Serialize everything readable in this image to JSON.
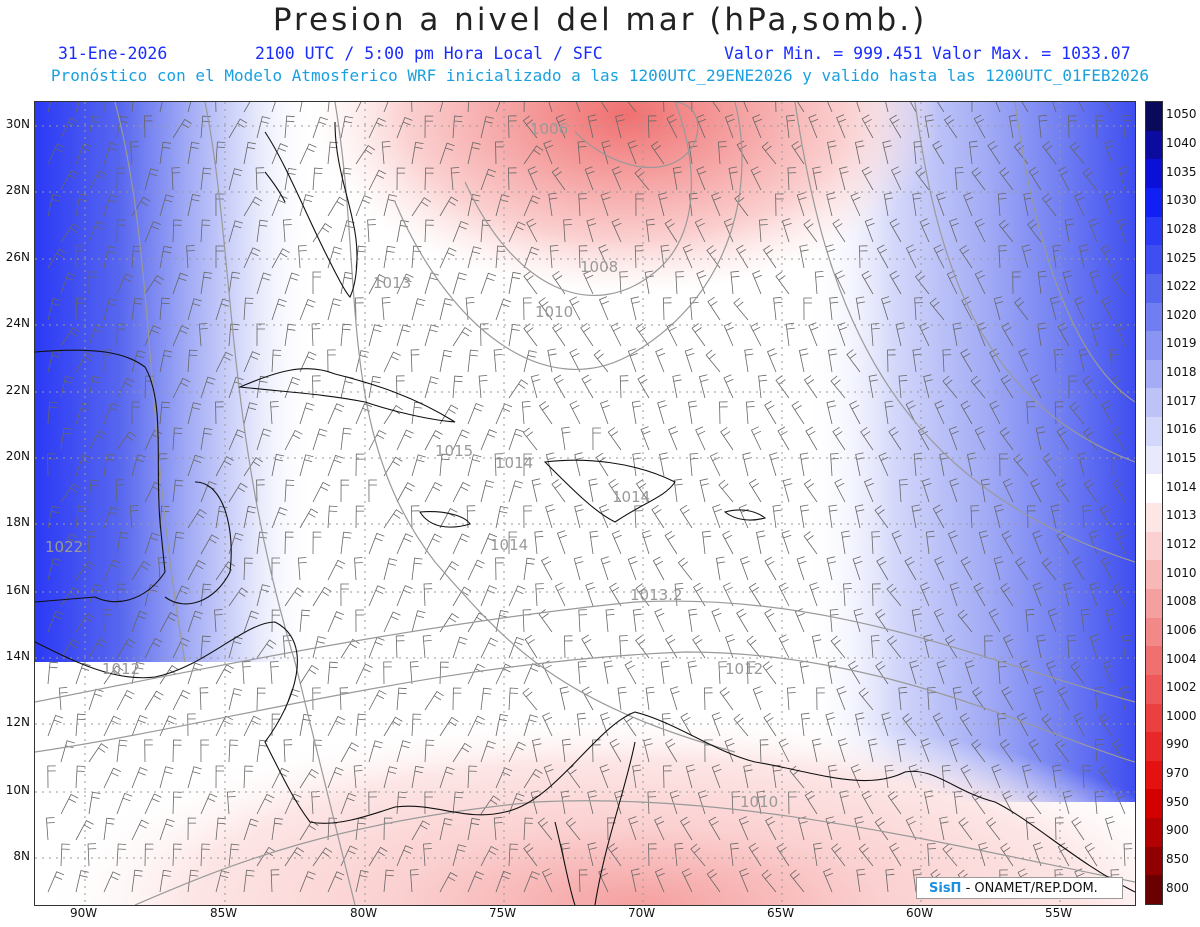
{
  "title": "Presion a nivel del mar (hPa,somb.)",
  "date": "31-Ene-2026",
  "time_text": "2100 UTC / 5:00 pm Hora Local / SFC",
  "min_text": "Valor Min. = 999.451",
  "max_text": "Valor Max. = 1033.07",
  "forecast_text": "Pronóstico con el Modelo Atmosferico WRF inicializado a las 1200UTC_29ENE2026 y valido hasta las  1200UTC_01FEB2026",
  "lat_labels": [
    "30N",
    "28N",
    "26N",
    "24N",
    "22N",
    "20N",
    "18N",
    "16N",
    "14N",
    "12N",
    "10N",
    "8N"
  ],
  "lon_labels": [
    "90W",
    "85W",
    "80W",
    "75W",
    "70W",
    "65W",
    "60W",
    "55W"
  ],
  "colorbar": {
    "labels": [
      "1050",
      "1040",
      "1035",
      "1030",
      "1028",
      "1025",
      "1022",
      "1020",
      "1019",
      "1018",
      "1017",
      "1016",
      "1015",
      "1014",
      "1013",
      "1012",
      "1010",
      "1008",
      "1006",
      "1004",
      "1002",
      "1000",
      "990",
      "970",
      "950",
      "900",
      "850",
      "800"
    ],
    "colors": [
      "#0a0a5a",
      "#0b0ba0",
      "#0a10d8",
      "#1020f5",
      "#2b3af5",
      "#3f4ef0",
      "#5766ef",
      "#707ef2",
      "#8a95f3",
      "#a3acf5",
      "#bdc3f7",
      "#d3d7fa",
      "#e8eafc",
      "#ffffff",
      "#fde6e6",
      "#fbd0d0",
      "#f8b8b8",
      "#f5a0a0",
      "#f28888",
      "#f07070",
      "#ee5858",
      "#eb4040",
      "#e82828",
      "#e51010",
      "#d40000",
      "#b30000",
      "#900000",
      "#6a0000"
    ]
  },
  "contour_labels": [
    "1006",
    "1008",
    "1010",
    "1013",
    "1015",
    "1014",
    "1014",
    "1014",
    "1022",
    "1012",
    "1013.2",
    "1012",
    "1010"
  ],
  "logo": {
    "brand": "SisΠ",
    "text": "- ONAMET/REP.DOM."
  }
}
